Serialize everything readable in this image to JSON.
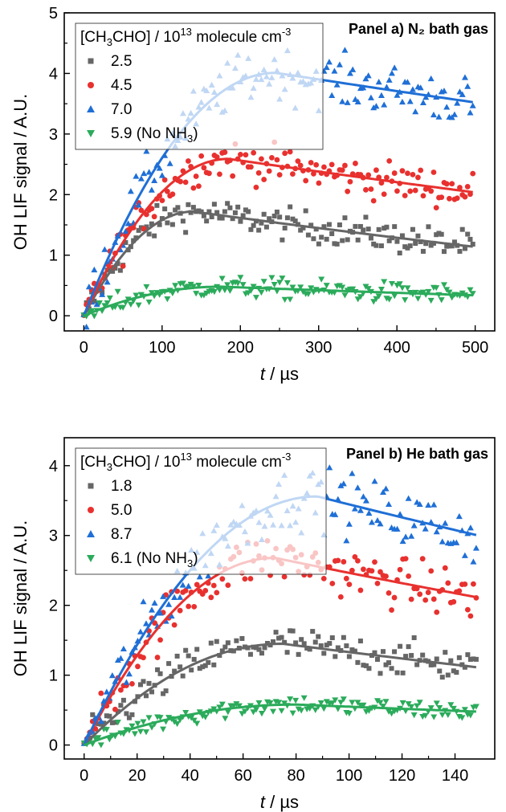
{
  "chart_data": [
    {
      "type": "scatter",
      "title": "Panel a) N₂ bath gas",
      "xlabel_var": "t",
      "xlabel_unit": " / µs",
      "ylabel": "OH LIF signal / A.U.",
      "xlim": [
        -25,
        525
      ],
      "ylim": [
        -0.25,
        5
      ],
      "xticks": [
        0,
        100,
        200,
        300,
        400,
        500
      ],
      "yticks": [
        0,
        1,
        2,
        3,
        4,
        5
      ],
      "legend": {
        "title_pre": "[CH",
        "title_sub1": "3",
        "title_mid": "CHO] / 10",
        "title_sup": "13",
        "title_post": " molecule cm",
        "title_sup2": "-3",
        "placement": "top-left"
      },
      "series": [
        {
          "label": "2.5",
          "color": "#666666",
          "marker": "square",
          "fit": {
            "tmax": 140,
            "ymax": 1.72,
            "decay": 0.0023
          },
          "noise": 0.18
        },
        {
          "label": "4.5",
          "color": "#e8312f",
          "marker": "circle",
          "fit": {
            "tmax": 185,
            "ymax": 2.59,
            "decay": 0.0016
          },
          "noise": 0.22
        },
        {
          "label": "7.0",
          "color": "#1f6fd6",
          "marker": "triangle-up",
          "fit": {
            "tmax": 245,
            "ymax": 4.01,
            "decay": 0.0011
          },
          "noise": 0.3
        },
        {
          "label": "5.9 (No NH",
          "label_sub": "3",
          "label_end": ")",
          "color": "#2bab5b",
          "marker": "triangle-down",
          "fit": {
            "tmax": 175,
            "ymax": 0.48,
            "decay": 0.0022
          },
          "noise": 0.12
        }
      ]
    },
    {
      "type": "scatter",
      "title": "Panel b) He bath gas",
      "xlabel_var": "t",
      "xlabel_unit": " / µs",
      "ylabel": "OH LIF signal / A.U.",
      "xlim": [
        -7.5,
        155
      ],
      "ylim": [
        -0.2,
        4.4
      ],
      "xticks": [
        0,
        20,
        40,
        60,
        80,
        100,
        120,
        140
      ],
      "yticks": [
        0,
        1,
        2,
        3,
        4
      ],
      "legend": {
        "title_pre": "[CH",
        "title_sub1": "3",
        "title_mid": "CHO] / 10",
        "title_sup": "13",
        "title_post": " molecule cm",
        "title_sup2": "-3",
        "placement": "top-left"
      },
      "series": [
        {
          "label": "1.8",
          "color": "#666666",
          "marker": "square",
          "fit": {
            "tmax": 75,
            "ymax": 1.45,
            "decay": 0.0075
          },
          "noise": 0.18
        },
        {
          "label": "5.0",
          "color": "#e8312f",
          "marker": "circle",
          "fit": {
            "tmax": 72,
            "ymax": 2.68,
            "decay": 0.0065
          },
          "noise": 0.25
        },
        {
          "label": "8.7",
          "color": "#1f6fd6",
          "marker": "triangle-up",
          "fit": {
            "tmax": 88,
            "ymax": 3.56,
            "decay": 0.006
          },
          "noise": 0.3
        },
        {
          "label": "6.1 (No NH",
          "label_sub": "3",
          "label_end": ")",
          "color": "#2bab5b",
          "marker": "triangle-down",
          "fit": {
            "tmax": 80,
            "ymax": 0.58,
            "decay": 0.006
          },
          "noise": 0.1
        }
      ]
    }
  ]
}
